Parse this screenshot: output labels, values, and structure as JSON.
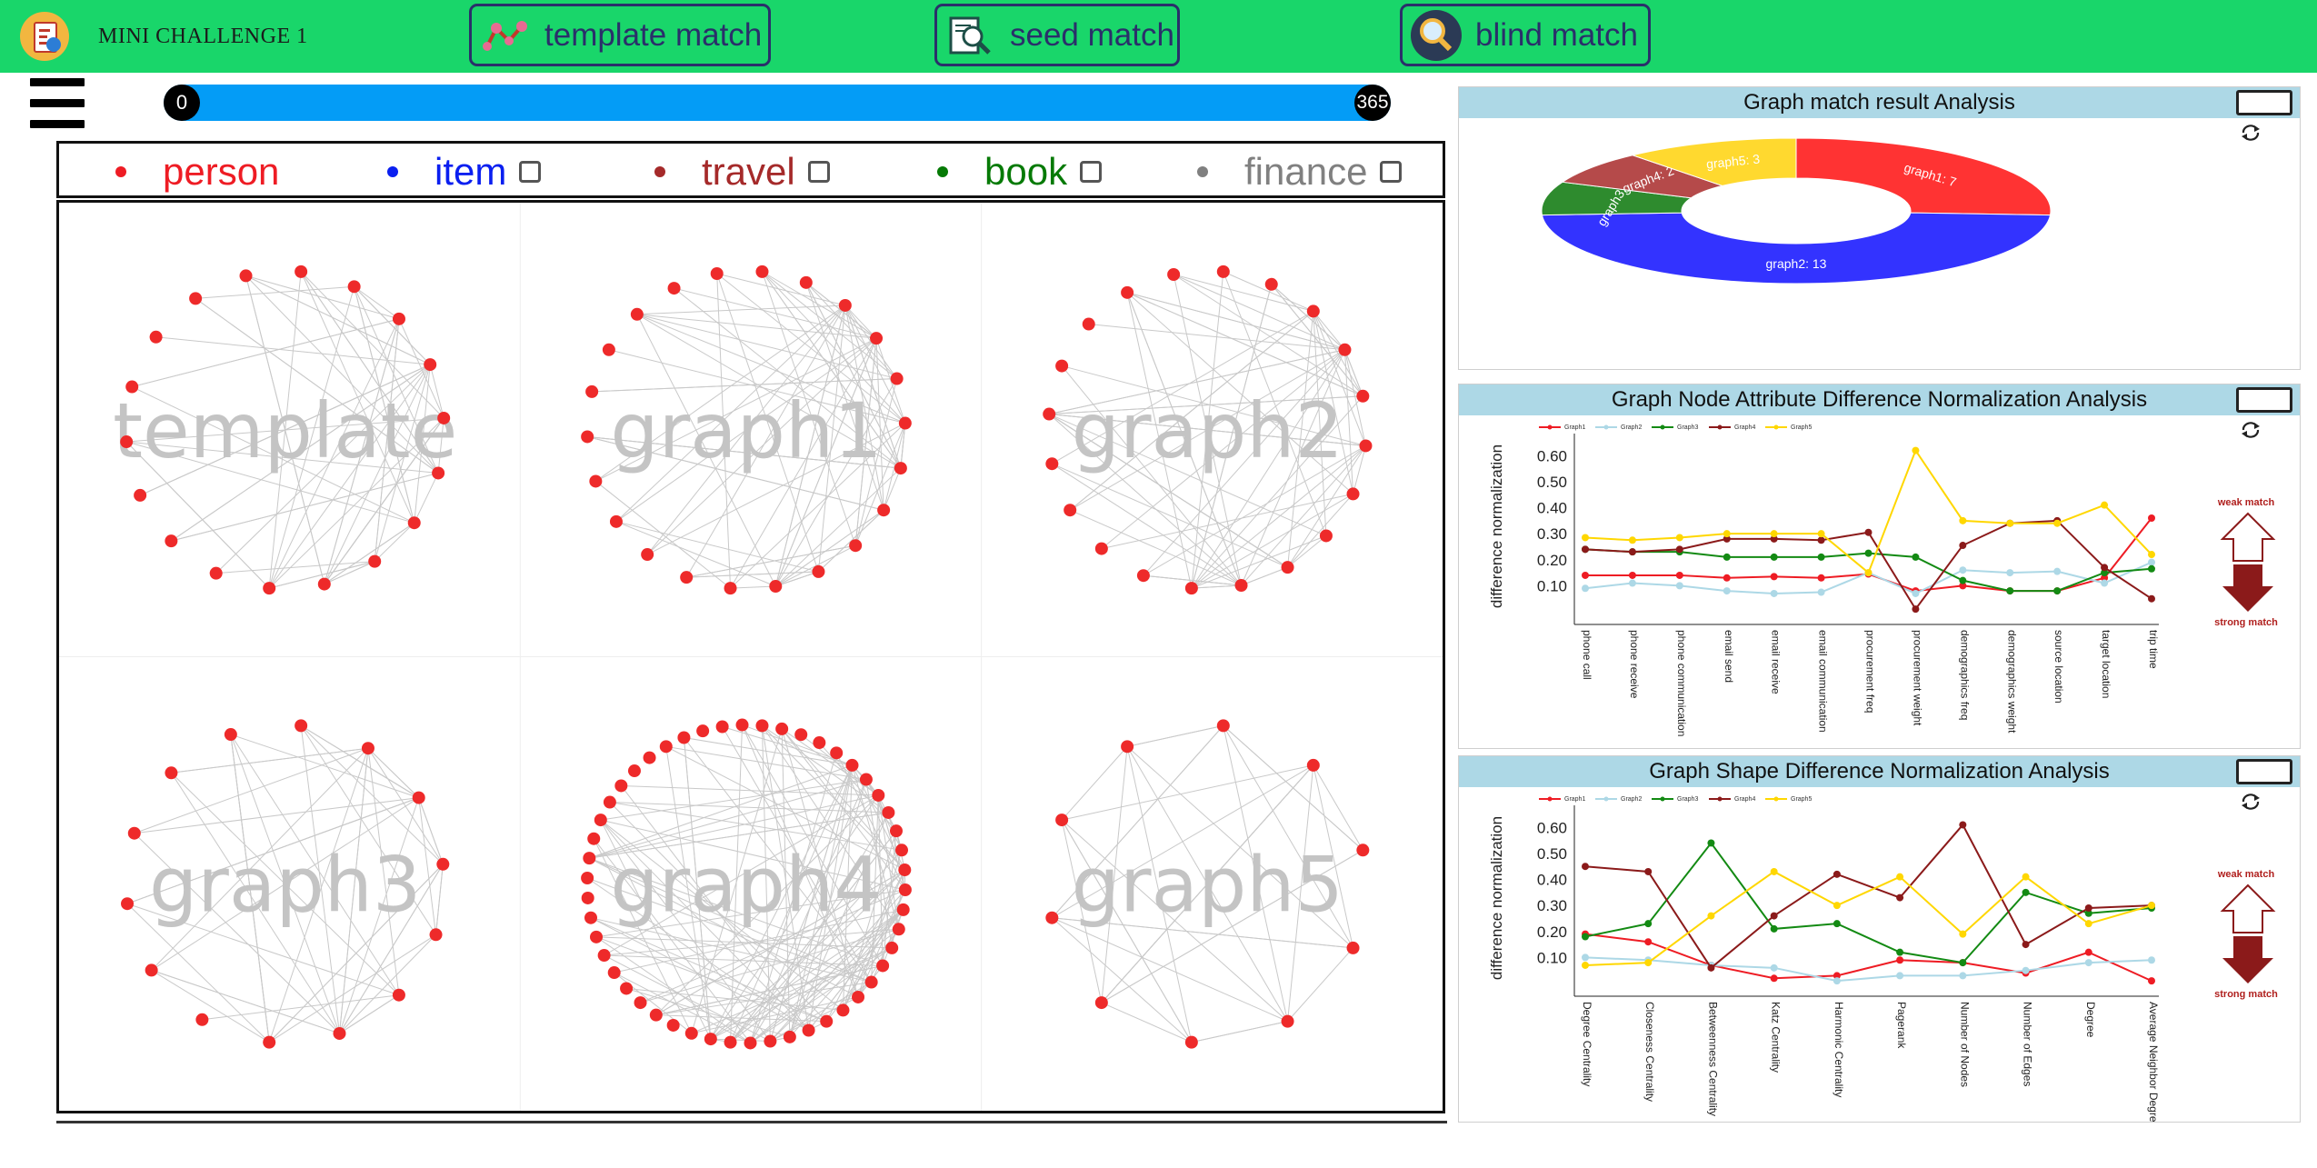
{
  "app": {
    "title": "MINI CHALLENGE 1"
  },
  "nav": [
    {
      "label": "template match",
      "icon": "graph-icon"
    },
    {
      "label": "seed match",
      "icon": "magnifier-document-icon"
    },
    {
      "label": "blind match",
      "icon": "magnifier-icon"
    }
  ],
  "slider": {
    "min": "0",
    "max": "365"
  },
  "legend": [
    {
      "label": "person",
      "color": "#ee1c24",
      "checkbox": false
    },
    {
      "label": "item",
      "color": "#0a1ff0",
      "checkbox": true
    },
    {
      "label": "travel",
      "color": "#a52a2a",
      "checkbox": true
    },
    {
      "label": "book",
      "color": "#067a06",
      "checkbox": true
    },
    {
      "label": "finance",
      "color": "#808080",
      "checkbox": true
    }
  ],
  "graphs": [
    {
      "label": "template",
      "nodes": 18
    },
    {
      "label": "graph1",
      "nodes": 22
    },
    {
      "label": "graph2",
      "nodes": 20
    },
    {
      "label": "graph3",
      "nodes": 14
    },
    {
      "label": "graph4",
      "nodes": 50
    },
    {
      "label": "graph5",
      "nodes": 10
    }
  ],
  "panels": {
    "pie": {
      "title": "Graph match result Analysis"
    },
    "attr": {
      "title": "Graph Node Attribute Difference Normalization Analysis"
    },
    "shape": {
      "title": "Graph Shape Difference Normalization Analysis"
    }
  },
  "chart_data": [
    {
      "type": "pie",
      "title": "Graph match result Analysis",
      "labels": [
        "graph1: 7",
        "graph2: 13",
        "graph3: 2",
        "graph4: 2",
        "graph5: 3"
      ],
      "values": [
        7,
        13,
        2,
        2,
        3
      ],
      "colors": [
        "#ff3333",
        "#3333ff",
        "#2e8b2e",
        "#b54a4a",
        "#ffd92f"
      ]
    },
    {
      "type": "line",
      "title": "Graph Node Attribute Difference Normalization Analysis",
      "ylabel": "difference normalization",
      "ylim": [
        0,
        0.65
      ],
      "yticks": [
        "0.10",
        "0.20",
        "0.30",
        "0.40",
        "0.50",
        "0.60"
      ],
      "categories": [
        "phone call",
        "phone receive",
        "phone communication",
        "email send",
        "email receive",
        "email communication",
        "procurement freq",
        "procurement weight",
        "demographics freq",
        "demographics weight",
        "source location",
        "target location",
        "trip time"
      ],
      "series": [
        {
          "name": "Graph1",
          "color": "#ee1c24",
          "values": [
            0.14,
            0.14,
            0.14,
            0.13,
            0.135,
            0.13,
            0.145,
            0.08,
            0.1,
            0.08,
            0.08,
            0.13,
            0.36
          ]
        },
        {
          "name": "Graph2",
          "color": "#add8e6",
          "values": [
            0.09,
            0.11,
            0.1,
            0.08,
            0.07,
            0.075,
            0.15,
            0.07,
            0.16,
            0.15,
            0.155,
            0.11,
            0.19
          ]
        },
        {
          "name": "Graph3",
          "color": "#138a13",
          "values": [
            0.24,
            0.23,
            0.23,
            0.21,
            0.21,
            0.21,
            0.225,
            0.21,
            0.12,
            0.08,
            0.08,
            0.15,
            0.165
          ]
        },
        {
          "name": "Graph4",
          "color": "#8b1a1a",
          "values": [
            0.24,
            0.23,
            0.24,
            0.28,
            0.28,
            0.275,
            0.305,
            0.01,
            0.255,
            0.34,
            0.35,
            0.17,
            0.05
          ]
        },
        {
          "name": "Graph5",
          "color": "#ffd700",
          "values": [
            0.285,
            0.275,
            0.285,
            0.3,
            0.3,
            0.3,
            0.15,
            0.62,
            0.35,
            0.34,
            0.34,
            0.41,
            0.22
          ]
        }
      ],
      "annotations": [
        "weak match",
        "strong match"
      ]
    },
    {
      "type": "line",
      "title": "Graph Shape Difference Normalization Analysis",
      "ylabel": "difference normalization",
      "ylim": [
        0,
        0.65
      ],
      "yticks": [
        "0.10",
        "0.20",
        "0.30",
        "0.40",
        "0.50",
        "0.60"
      ],
      "categories": [
        "Degree Centrality",
        "Closeness Centrality",
        "Betweenness Centrality",
        "Katz Centrality",
        "Harmonic Centrality",
        "Pagerank",
        "Number of Nodes",
        "Number of Edges",
        "Degree",
        "Average Neighbor Degree"
      ],
      "series": [
        {
          "name": "Graph1",
          "color": "#ee1c24",
          "values": [
            0.19,
            0.16,
            0.07,
            0.02,
            0.03,
            0.09,
            0.08,
            0.04,
            0.12,
            0.01
          ]
        },
        {
          "name": "Graph2",
          "color": "#add8e6",
          "values": [
            0.1,
            0.09,
            0.07,
            0.06,
            0.01,
            0.03,
            0.03,
            0.05,
            0.08,
            0.09
          ]
        },
        {
          "name": "Graph3",
          "color": "#138a13",
          "values": [
            0.18,
            0.23,
            0.54,
            0.21,
            0.23,
            0.12,
            0.08,
            0.35,
            0.27,
            0.29
          ]
        },
        {
          "name": "Graph4",
          "color": "#8b1a1a",
          "values": [
            0.45,
            0.43,
            0.06,
            0.26,
            0.42,
            0.33,
            0.61,
            0.15,
            0.29,
            0.3
          ]
        },
        {
          "name": "Graph5",
          "color": "#ffd700",
          "values": [
            0.07,
            0.08,
            0.26,
            0.43,
            0.3,
            0.41,
            0.19,
            0.41,
            0.23,
            0.3
          ]
        }
      ],
      "annotations": [
        "weak match",
        "strong match"
      ]
    }
  ]
}
